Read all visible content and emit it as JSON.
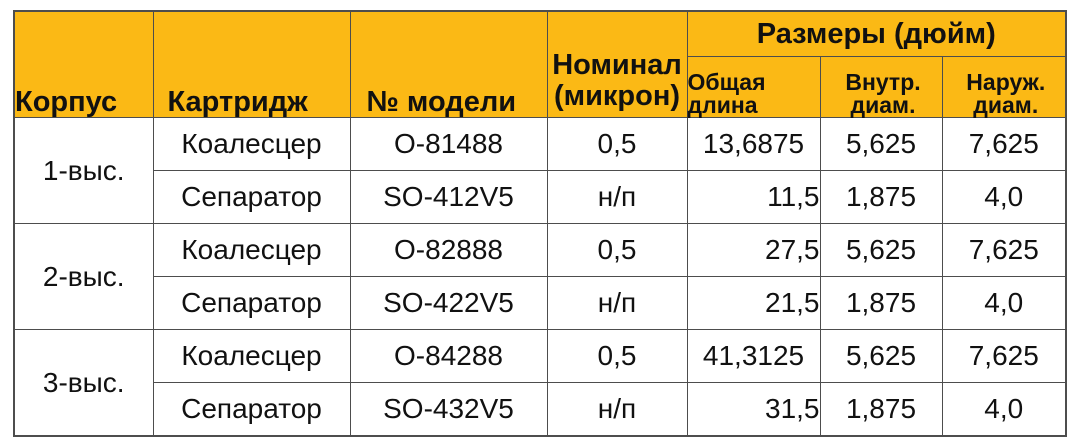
{
  "header": {
    "housing": "Корпус",
    "cartridge": "Картридж",
    "model": "№ модели",
    "nominal_line1": "Номинал",
    "nominal_line2": "(микрон)",
    "dimensions": "Размеры (дюйм)",
    "overall_line1": "Общая",
    "overall_line2": "длина",
    "inner_line1": "Внутр.",
    "inner_line2": "диам.",
    "outer_line1": "Наруж.",
    "outer_line2": "диам."
  },
  "groups": [
    {
      "housing": "1-выс.",
      "rows": [
        {
          "cartridge": "Коалесцер",
          "model": "O-81488",
          "nominal": "0,5",
          "overall": "13,6875",
          "inner": "5,625",
          "outer": "7,625"
        },
        {
          "cartridge": "Сепаратор",
          "model": "SO-412V5",
          "nominal": "н/п",
          "overall": "11,5",
          "inner": "1,875",
          "outer": "4,0"
        }
      ]
    },
    {
      "housing": "2-выс.",
      "rows": [
        {
          "cartridge": "Коалесцер",
          "model": "O-82888",
          "nominal": "0,5",
          "overall": "27,5",
          "inner": "5,625",
          "outer": "7,625"
        },
        {
          "cartridge": "Сепаратор",
          "model": "SO-422V5",
          "nominal": "н/п",
          "overall": "21,5",
          "inner": "1,875",
          "outer": "4,0"
        }
      ]
    },
    {
      "housing": "3-выс.",
      "rows": [
        {
          "cartridge": "Коалесцер",
          "model": "O-84288",
          "nominal": "0,5",
          "overall": "41,3125",
          "inner": "5,625",
          "outer": "7,625"
        },
        {
          "cartridge": "Сепаратор",
          "model": "SO-432V5",
          "nominal": "н/п",
          "overall": "31,5",
          "inner": "1,875",
          "outer": "4,0"
        }
      ]
    }
  ],
  "colors": {
    "header_bg": "#fbb915",
    "border": "#4d4d4d"
  }
}
